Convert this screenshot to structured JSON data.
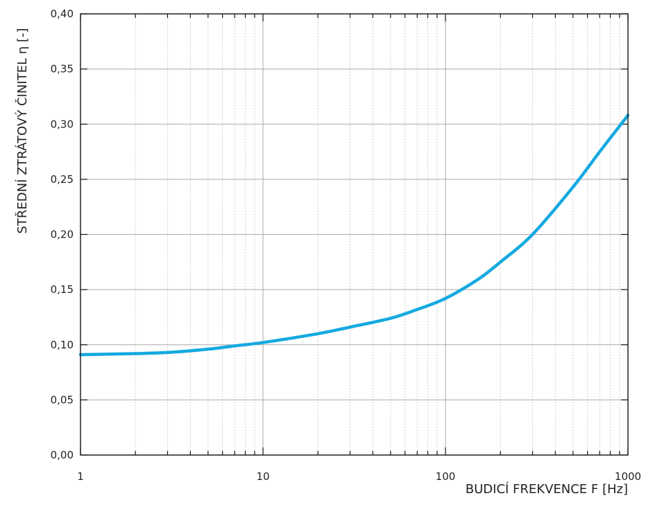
{
  "chart_data": {
    "type": "line",
    "xlabel": "BUDICÍ FREKVENCE F [Hz]",
    "ylabel": "STŘEDNÍ ZTRÁTOVÝ ČINITEL η [-]",
    "x_scale": "log",
    "xlim": [
      1,
      1000
    ],
    "ylim": [
      0,
      0.4
    ],
    "grid": true,
    "x_ticks": [
      1,
      10,
      100,
      1000
    ],
    "x_tick_labels": [
      "1",
      "10",
      "100",
      "1000"
    ],
    "y_ticks": [
      0,
      0.05,
      0.1,
      0.15,
      0.2,
      0.25,
      0.3,
      0.35,
      0.4
    ],
    "y_tick_labels": [
      "0,00",
      "0,05",
      "0,10",
      "0,15",
      "0,20",
      "0,25",
      "0,30",
      "0,35",
      "0,40"
    ],
    "series": [
      {
        "color": "#14a9e0",
        "x": [
          1,
          2,
          3,
          5,
          7,
          10,
          20,
          30,
          50,
          70,
          100,
          150,
          200,
          300,
          500,
          700,
          1000
        ],
        "y": [
          0.091,
          0.092,
          0.093,
          0.096,
          0.099,
          0.102,
          0.11,
          0.116,
          0.124,
          0.132,
          0.142,
          0.159,
          0.175,
          0.2,
          0.243,
          0.275,
          0.308
        ]
      }
    ]
  }
}
